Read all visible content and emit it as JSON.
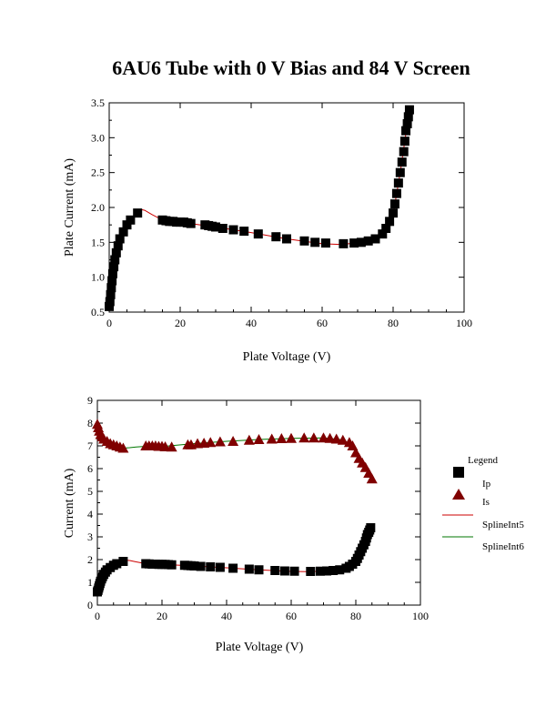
{
  "title": "6AU6 Tube with 0 V Bias and 84 V Screen",
  "colors": {
    "ip": "#000000",
    "is": "#800000",
    "fit_ip": "#cc0000",
    "fit_is": "#007700"
  },
  "chart_data": [
    {
      "type": "scatter",
      "xlabel": "Plate Voltage (V)",
      "ylabel": "Plate Current (mA)",
      "xlim": [
        0,
        100
      ],
      "ylim": [
        0.5,
        3.5
      ],
      "xticks": [
        0,
        20,
        40,
        60,
        80,
        100
      ],
      "yticks": [
        0.5,
        1.0,
        1.5,
        2.0,
        2.5,
        3.0,
        3.5
      ],
      "ytick_labels": [
        "0.5",
        "1.0",
        "1.5",
        "2.0",
        "2.5",
        "3.0",
        "3.5"
      ],
      "series": [
        {
          "name": "Ip",
          "marker": "square",
          "x": [
            0,
            0.2,
            0.4,
            0.6,
            0.8,
            1,
            1.3,
            1.6,
            2,
            2.5,
            3,
            4,
            5,
            6,
            8,
            15,
            16,
            17,
            18,
            19,
            20,
            21,
            22,
            23,
            27,
            28,
            29,
            30,
            32,
            35,
            38,
            42,
            47,
            50,
            55,
            58,
            61,
            66,
            69,
            71,
            73,
            75,
            77,
            78,
            79,
            80,
            80.5,
            81,
            81.5,
            82,
            82.5,
            83,
            83.3,
            83.6,
            84,
            84.3,
            84.6
          ],
          "y": [
            0.58,
            0.65,
            0.75,
            0.85,
            0.95,
            1.05,
            1.15,
            1.25,
            1.35,
            1.45,
            1.55,
            1.65,
            1.75,
            1.82,
            1.92,
            1.82,
            1.81,
            1.8,
            1.8,
            1.79,
            1.79,
            1.79,
            1.78,
            1.77,
            1.75,
            1.74,
            1.73,
            1.72,
            1.7,
            1.68,
            1.66,
            1.62,
            1.58,
            1.55,
            1.52,
            1.5,
            1.49,
            1.48,
            1.49,
            1.5,
            1.52,
            1.55,
            1.62,
            1.7,
            1.8,
            1.92,
            2.05,
            2.2,
            2.35,
            2.5,
            2.65,
            2.8,
            2.95,
            3.1,
            3.2,
            3.3,
            3.4
          ]
        }
      ],
      "fit": [
        {
          "x": [
            0,
            1,
            2,
            3,
            4,
            5,
            6,
            7,
            8,
            9,
            10,
            12,
            15,
            20,
            30,
            40,
            50,
            60,
            65,
            70,
            75,
            78,
            80,
            82,
            84,
            85
          ],
          "y": [
            0.58,
            1.05,
            1.35,
            1.55,
            1.65,
            1.75,
            1.82,
            1.88,
            1.95,
            1.97,
            1.96,
            1.9,
            1.82,
            1.79,
            1.72,
            1.64,
            1.55,
            1.48,
            1.47,
            1.49,
            1.55,
            1.66,
            1.9,
            2.5,
            3.2,
            3.42
          ]
        }
      ]
    },
    {
      "type": "scatter",
      "xlabel": "Plate Voltage (V)",
      "ylabel": "Current (mA)",
      "xlim": [
        0,
        100
      ],
      "ylim": [
        0,
        9
      ],
      "xticks": [
        0,
        20,
        40,
        60,
        80,
        100
      ],
      "yticks": [
        0,
        1,
        2,
        3,
        4,
        5,
        6,
        7,
        8,
        9
      ],
      "ytick_labels": [
        "0",
        "1",
        "2",
        "3",
        "4",
        "5",
        "6",
        "7",
        "8",
        "9"
      ],
      "series": [
        {
          "name": "Ip",
          "marker": "square",
          "x": [
            0,
            0.2,
            0.4,
            0.6,
            0.8,
            1,
            1.3,
            1.6,
            2,
            2.5,
            3,
            4,
            5,
            6,
            8,
            15,
            16,
            17,
            18,
            19,
            20,
            21,
            22,
            23,
            27,
            28,
            29,
            30,
            32,
            35,
            38,
            42,
            47,
            50,
            55,
            58,
            61,
            66,
            69,
            71,
            73,
            75,
            77,
            78,
            79,
            80,
            80.5,
            81,
            81.5,
            82,
            82.5,
            83,
            83.3,
            83.6,
            84,
            84.3,
            84.6
          ],
          "y": [
            0.58,
            0.65,
            0.75,
            0.85,
            0.95,
            1.05,
            1.15,
            1.25,
            1.35,
            1.45,
            1.55,
            1.65,
            1.75,
            1.82,
            1.92,
            1.82,
            1.81,
            1.8,
            1.8,
            1.79,
            1.79,
            1.79,
            1.78,
            1.77,
            1.75,
            1.74,
            1.73,
            1.72,
            1.7,
            1.68,
            1.66,
            1.62,
            1.58,
            1.55,
            1.52,
            1.5,
            1.49,
            1.48,
            1.49,
            1.5,
            1.52,
            1.55,
            1.62,
            1.7,
            1.8,
            1.92,
            2.05,
            2.2,
            2.35,
            2.5,
            2.65,
            2.8,
            2.95,
            3.1,
            3.2,
            3.3,
            3.4
          ]
        },
        {
          "name": "Is",
          "marker": "triangle",
          "x": [
            0,
            0.3,
            0.6,
            1,
            1.5,
            2,
            3,
            4,
            5,
            6,
            7,
            8,
            15,
            16,
            17,
            18,
            19,
            20,
            21,
            23,
            28,
            29,
            31,
            33,
            35,
            38,
            42,
            47,
            50,
            54,
            57,
            60,
            64,
            67,
            70,
            72,
            74,
            76,
            78,
            79,
            80,
            81,
            82,
            83,
            84,
            85
          ],
          "y": [
            7.95,
            7.8,
            7.65,
            7.5,
            7.4,
            7.3,
            7.2,
            7.1,
            7.05,
            7.0,
            6.95,
            6.9,
            7.0,
            7.0,
            7.0,
            7.0,
            6.98,
            6.98,
            6.96,
            6.95,
            7.05,
            7.05,
            7.1,
            7.12,
            7.15,
            7.18,
            7.2,
            7.25,
            7.28,
            7.3,
            7.32,
            7.33,
            7.35,
            7.35,
            7.35,
            7.33,
            7.3,
            7.25,
            7.15,
            7.0,
            6.7,
            6.45,
            6.25,
            6.05,
            5.8,
            5.55
          ]
        }
      ],
      "fit": [
        {
          "series": "Ip",
          "x": [
            0,
            1,
            2,
            3,
            4,
            5,
            6,
            7,
            8,
            9,
            10,
            12,
            15,
            20,
            30,
            40,
            50,
            60,
            65,
            70,
            75,
            78,
            80,
            82,
            84,
            85
          ],
          "y": [
            0.58,
            1.05,
            1.35,
            1.55,
            1.65,
            1.75,
            1.82,
            1.88,
            1.95,
            1.97,
            1.96,
            1.9,
            1.82,
            1.79,
            1.72,
            1.64,
            1.55,
            1.48,
            1.47,
            1.49,
            1.55,
            1.66,
            1.9,
            2.5,
            3.2,
            3.42
          ]
        },
        {
          "series": "Is",
          "x": [
            0,
            1,
            2,
            3,
            4,
            5,
            6,
            7,
            8,
            10,
            12,
            15,
            20,
            30,
            40,
            50,
            60,
            70,
            75,
            78,
            80,
            82,
            84,
            85
          ],
          "y": [
            7.95,
            7.5,
            7.3,
            7.2,
            7.1,
            7.05,
            7.0,
            6.95,
            6.9,
            6.92,
            6.95,
            6.98,
            6.97,
            7.1,
            7.2,
            7.28,
            7.33,
            7.35,
            7.28,
            7.12,
            6.75,
            6.3,
            5.85,
            5.5
          ]
        }
      ],
      "legend": {
        "title": "Legend",
        "position": "right",
        "entries": [
          {
            "label": "Ip",
            "kind": "square"
          },
          {
            "label": "Is",
            "kind": "triangle"
          },
          {
            "label": "SplineInt5",
            "kind": "line-red"
          },
          {
            "label": "SplineInt6",
            "kind": "line-green"
          }
        ]
      }
    }
  ]
}
